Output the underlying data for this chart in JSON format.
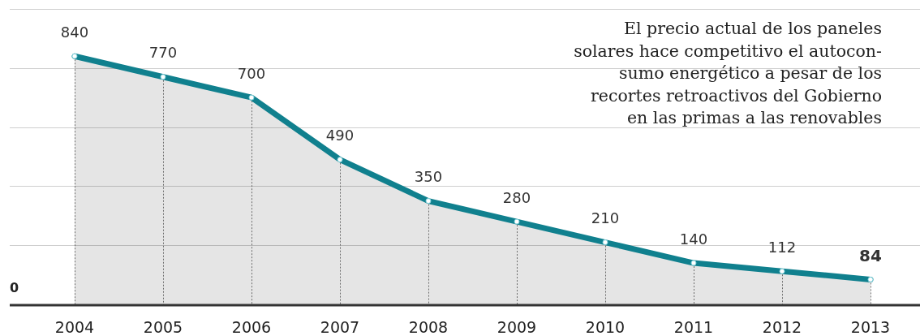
{
  "chart_data": {
    "type": "area",
    "categories": [
      "2004",
      "2005",
      "2006",
      "2007",
      "2008",
      "2009",
      "2010",
      "2011",
      "2012",
      "2013"
    ],
    "series": [
      {
        "color": "#10808e",
        "values": [
          840,
          770,
          700,
          490,
          350,
          280,
          210,
          140,
          112,
          84
        ]
      }
    ],
    "grid": true,
    "marker": "circle",
    "data_labels": true,
    "annotations": [
      "0",
      "El precio actual de los paneles\nsolares hace competitivo el autocon-\nsumo energético a pesar de los\nrecortes retroactivos del Gobierno\nen las primas a las renovables"
    ]
  }
}
